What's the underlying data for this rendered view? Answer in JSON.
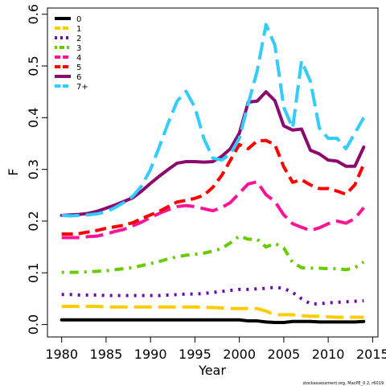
{
  "chart_data": {
    "type": "line",
    "xlabel": "Year",
    "ylabel": "F",
    "xlim": [
      1978.4,
      2015.6
    ],
    "ylim": [
      -0.024,
      0.612
    ],
    "x_ticks": [
      1980,
      1985,
      1990,
      1995,
      2000,
      2005,
      2010,
      2015
    ],
    "y_ticks": [
      0.0,
      0.1,
      0.2,
      0.3,
      0.4,
      0.5,
      0.6
    ],
    "y_tick_labels": [
      "0.0",
      "0.1",
      "0.2",
      "0.3",
      "0.4",
      "0.5",
      "0.6"
    ],
    "legend_position": "top-left",
    "footnote": "stockassessment.org,  MacPE_0.2, r6019",
    "x": [
      1980,
      1981,
      1982,
      1983,
      1984,
      1985,
      1986,
      1987,
      1988,
      1989,
      1990,
      1991,
      1992,
      1993,
      1994,
      1995,
      1996,
      1997,
      1998,
      1999,
      2000,
      2001,
      2002,
      2003,
      2004,
      2005,
      2006,
      2007,
      2008,
      2009,
      2010,
      2011,
      2012,
      2013,
      2014
    ],
    "series": [
      {
        "name": "0",
        "color": "#000000",
        "dash": "solid",
        "values": [
          0.009,
          0.009,
          0.009,
          0.009,
          0.009,
          0.009,
          0.009,
          0.009,
          0.009,
          0.009,
          0.009,
          0.009,
          0.009,
          0.009,
          0.009,
          0.009,
          0.009,
          0.009,
          0.009,
          0.009,
          0.009,
          0.007,
          0.007,
          0.005,
          0.004,
          0.004,
          0.006,
          0.006,
          0.006,
          0.005,
          0.005,
          0.005,
          0.005,
          0.005,
          0.006
        ]
      },
      {
        "name": "1",
        "color": "#FFCC00",
        "dash": "longdash",
        "values": [
          0.035,
          0.035,
          0.035,
          0.035,
          0.035,
          0.034,
          0.034,
          0.034,
          0.034,
          0.034,
          0.034,
          0.034,
          0.034,
          0.034,
          0.034,
          0.034,
          0.033,
          0.033,
          0.032,
          0.031,
          0.031,
          0.031,
          0.031,
          0.026,
          0.019,
          0.019,
          0.019,
          0.017,
          0.016,
          0.016,
          0.015,
          0.014,
          0.014,
          0.014,
          0.014
        ]
      },
      {
        "name": "2",
        "color": "#6A0DAD",
        "dash": "dotted",
        "values": [
          0.058,
          0.058,
          0.057,
          0.057,
          0.057,
          0.056,
          0.056,
          0.056,
          0.056,
          0.056,
          0.056,
          0.056,
          0.057,
          0.058,
          0.059,
          0.059,
          0.06,
          0.062,
          0.064,
          0.066,
          0.068,
          0.068,
          0.069,
          0.07,
          0.072,
          0.07,
          0.062,
          0.05,
          0.04,
          0.04,
          0.042,
          0.043,
          0.044,
          0.045,
          0.046
        ]
      },
      {
        "name": "3",
        "color": "#66CC00",
        "dash": "dotdash",
        "values": [
          0.101,
          0.101,
          0.101,
          0.102,
          0.103,
          0.104,
          0.106,
          0.108,
          0.11,
          0.114,
          0.118,
          0.122,
          0.127,
          0.131,
          0.134,
          0.136,
          0.138,
          0.142,
          0.147,
          0.158,
          0.171,
          0.165,
          0.165,
          0.15,
          0.157,
          0.148,
          0.12,
          0.11,
          0.109,
          0.109,
          0.108,
          0.108,
          0.106,
          0.11,
          0.121
        ]
      },
      {
        "name": "4",
        "color": "#FF1493",
        "dash": "longdash",
        "values": [
          0.168,
          0.168,
          0.168,
          0.17,
          0.171,
          0.175,
          0.18,
          0.184,
          0.191,
          0.198,
          0.207,
          0.215,
          0.222,
          0.228,
          0.23,
          0.228,
          0.224,
          0.22,
          0.226,
          0.236,
          0.254,
          0.272,
          0.276,
          0.251,
          0.238,
          0.212,
          0.195,
          0.188,
          0.182,
          0.187,
          0.195,
          0.2,
          0.196,
          0.205,
          0.226
        ]
      },
      {
        "name": "5",
        "color": "#FF0000",
        "dash": "dashed",
        "values": [
          0.175,
          0.175,
          0.176,
          0.179,
          0.182,
          0.186,
          0.189,
          0.192,
          0.197,
          0.205,
          0.212,
          0.219,
          0.228,
          0.237,
          0.24,
          0.244,
          0.25,
          0.265,
          0.288,
          0.318,
          0.348,
          0.34,
          0.355,
          0.356,
          0.348,
          0.305,
          0.275,
          0.28,
          0.27,
          0.263,
          0.263,
          0.258,
          0.252,
          0.27,
          0.31
        ]
      },
      {
        "name": "6",
        "color": "#8B0A70",
        "dash": "solid",
        "values": [
          0.211,
          0.212,
          0.213,
          0.215,
          0.219,
          0.225,
          0.231,
          0.238,
          0.245,
          0.258,
          0.273,
          0.287,
          0.3,
          0.312,
          0.315,
          0.315,
          0.314,
          0.315,
          0.325,
          0.34,
          0.37,
          0.43,
          0.432,
          0.45,
          0.433,
          0.384,
          0.376,
          0.378,
          0.337,
          0.33,
          0.318,
          0.316,
          0.306,
          0.306,
          0.343
        ]
      },
      {
        "name": "7+",
        "color": "#33CCFF",
        "dash": "longdash",
        "values": [
          0.211,
          0.21,
          0.211,
          0.212,
          0.214,
          0.218,
          0.226,
          0.236,
          0.248,
          0.268,
          0.3,
          0.344,
          0.39,
          0.432,
          0.451,
          0.42,
          0.36,
          0.322,
          0.318,
          0.33,
          0.36,
          0.427,
          0.49,
          0.58,
          0.54,
          0.42,
          0.38,
          0.51,
          0.47,
          0.38,
          0.36,
          0.36,
          0.34,
          0.37,
          0.4
        ]
      }
    ]
  }
}
